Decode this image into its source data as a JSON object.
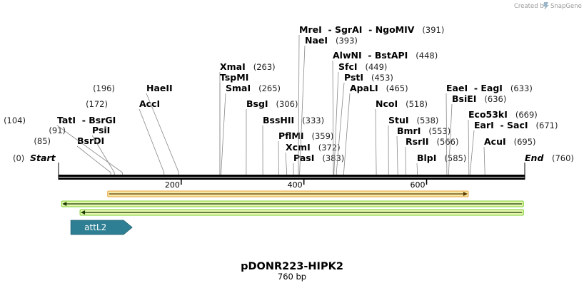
{
  "credit": {
    "prefix": "Created by",
    "brand": "SnapGene",
    "icon": "snapgene-logo-icon"
  },
  "map": {
    "name": "pDONR223-HIPK2",
    "length_label": "760 bp",
    "length_bp": 760,
    "start_label": "Start",
    "start_pos": "(0)",
    "end_label": "End",
    "end_pos": "(760)",
    "ruler_ticks": [
      200,
      400,
      600
    ]
  },
  "sites": [
    {
      "names": [
        "BsrDI"
      ],
      "pos": 85,
      "pos_text": "(85)"
    },
    {
      "names": [
        "PsiI"
      ],
      "pos": 91,
      "pos_text": "(91)"
    },
    {
      "names": [
        "TatI",
        "BsrGI"
      ],
      "pos": 104,
      "pos_text": "(104)"
    },
    {
      "names": [
        "AccI"
      ],
      "pos": 172,
      "pos_text": "(172)"
    },
    {
      "names": [
        "HaeII"
      ],
      "pos": 196,
      "pos_text": "(196)"
    },
    {
      "names": [
        "XmaI"
      ],
      "pos": 263,
      "pos_text": "(263)"
    },
    {
      "names": [
        "TspMI"
      ],
      "pos": 263,
      "pos_text": ""
    },
    {
      "names": [
        "SmaI"
      ],
      "pos": 265,
      "pos_text": "(265)"
    },
    {
      "names": [
        "BsgI"
      ],
      "pos": 306,
      "pos_text": "(306)"
    },
    {
      "names": [
        "BssHII"
      ],
      "pos": 333,
      "pos_text": "(333)"
    },
    {
      "names": [
        "PflMI"
      ],
      "pos": 359,
      "pos_text": "(359)"
    },
    {
      "names": [
        "XcmI"
      ],
      "pos": 372,
      "pos_text": "(372)"
    },
    {
      "names": [
        "PasI"
      ],
      "pos": 383,
      "pos_text": "(383)"
    },
    {
      "names": [
        "MreI",
        "SgrAI",
        "NgoMIV"
      ],
      "pos": 391,
      "pos_text": "(391)"
    },
    {
      "names": [
        "NaeI"
      ],
      "pos": 393,
      "pos_text": "(393)"
    },
    {
      "names": [
        "AlwNI",
        "BstAPI"
      ],
      "pos": 448,
      "pos_text": "(448)"
    },
    {
      "names": [
        "SfcI"
      ],
      "pos": 449,
      "pos_text": "(449)"
    },
    {
      "names": [
        "PstI"
      ],
      "pos": 453,
      "pos_text": "(453)"
    },
    {
      "names": [
        "ApaLI"
      ],
      "pos": 465,
      "pos_text": "(465)"
    },
    {
      "names": [
        "NcoI"
      ],
      "pos": 518,
      "pos_text": "(518)"
    },
    {
      "names": [
        "StuI"
      ],
      "pos": 538,
      "pos_text": "(538)"
    },
    {
      "names": [
        "BmrI"
      ],
      "pos": 553,
      "pos_text": "(553)"
    },
    {
      "names": [
        "RsrII"
      ],
      "pos": 566,
      "pos_text": "(566)"
    },
    {
      "names": [
        "BlpI"
      ],
      "pos": 585,
      "pos_text": "(585)"
    },
    {
      "names": [
        "EaeI",
        "EagI"
      ],
      "pos": 633,
      "pos_text": "(633)"
    },
    {
      "names": [
        "BsiEI"
      ],
      "pos": 636,
      "pos_text": "(636)"
    },
    {
      "names": [
        "Eco53kI"
      ],
      "pos": 669,
      "pos_text": "(669)"
    },
    {
      "names": [
        "EarI",
        "SacI"
      ],
      "pos": 671,
      "pos_text": "(671)"
    },
    {
      "names": [
        "AcuI"
      ],
      "pos": 695,
      "pos_text": "(695)"
    }
  ],
  "features": [
    {
      "name": "orf-forward",
      "start": 80,
      "end": 668,
      "direction": "forward",
      "color": "#e8a13c",
      "inner": "#f7e9a8"
    },
    {
      "name": "orf-reverse-1",
      "start": 5,
      "end": 758,
      "direction": "reverse",
      "color": "#7ccf2f",
      "inner": "#e6f7b0"
    },
    {
      "name": "orf-reverse-2",
      "start": 35,
      "end": 758,
      "direction": "reverse",
      "color": "#7ccf2f",
      "inner": "#e6f7b0"
    },
    {
      "name": "attL2",
      "label": "attL2",
      "start": 20,
      "end": 120,
      "direction": "forward",
      "color": "#2e7f93"
    }
  ]
}
